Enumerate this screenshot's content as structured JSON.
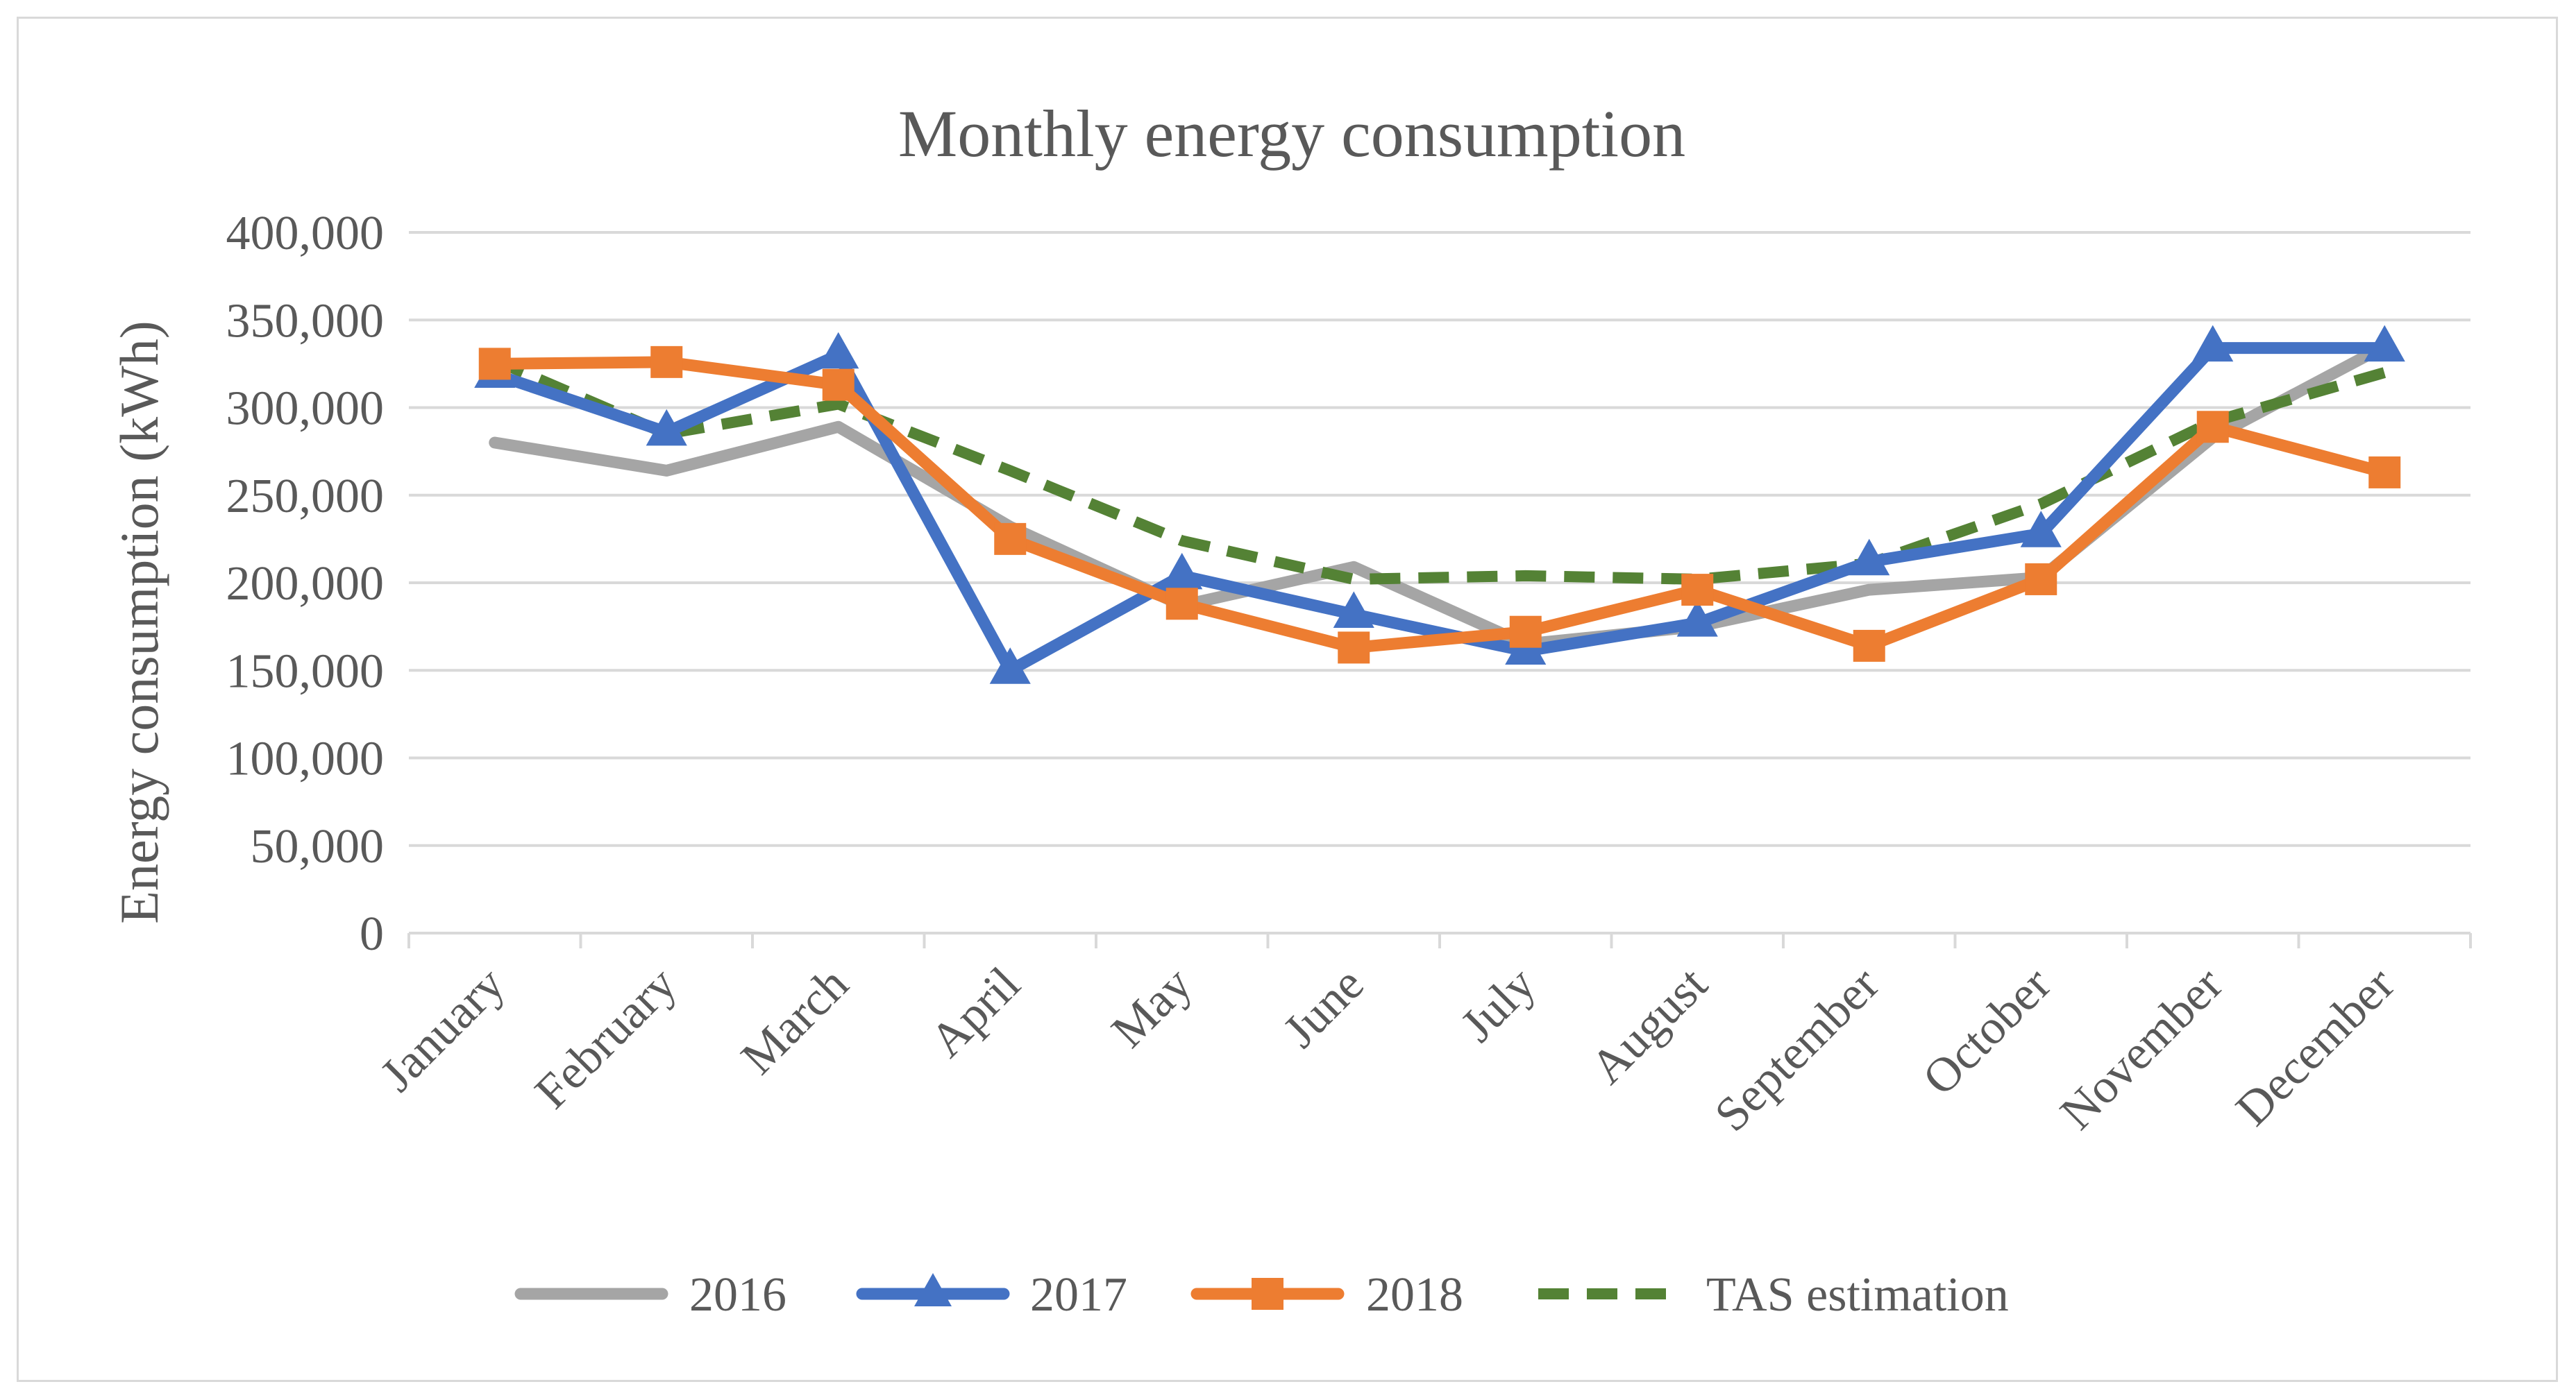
{
  "chart_data": {
    "type": "line",
    "title": "Monthly energy consumption",
    "xlabel": "",
    "ylabel": "Energy consumption (kWh)",
    "ylim": [
      0,
      400000
    ],
    "ytick_step": 50000,
    "ytick_labels": [
      "0",
      "50,000",
      "100,000",
      "150,000",
      "200,000",
      "250,000",
      "300,000",
      "350,000",
      "400,000"
    ],
    "grid": true,
    "legend_position": "bottom",
    "categories": [
      "January",
      "February",
      "March",
      "April",
      "May",
      "June",
      "July",
      "August",
      "September",
      "October",
      "November",
      "December"
    ],
    "series": [
      {
        "name": "2016",
        "color": "#a5a5a5",
        "marker": "none",
        "dash": "solid",
        "values": [
          280000,
          264000,
          289000,
          232000,
          187000,
          209000,
          165000,
          175000,
          196000,
          203000,
          283000,
          335000
        ]
      },
      {
        "name": "2017",
        "color": "#4472c4",
        "marker": "triangle",
        "dash": "solid",
        "values": [
          319000,
          286000,
          330000,
          150000,
          204000,
          182000,
          161000,
          177000,
          212000,
          228000,
          334000,
          334000
        ]
      },
      {
        "name": "2018",
        "color": "#ed7d31",
        "marker": "square",
        "dash": "solid",
        "values": [
          325000,
          326000,
          313000,
          225000,
          188000,
          163000,
          172000,
          196000,
          164000,
          202000,
          289000,
          263000
        ]
      },
      {
        "name": "TAS estimation",
        "color": "#548235",
        "marker": "none",
        "dash": "dashed",
        "values": [
          327000,
          285000,
          302000,
          264000,
          224000,
          202000,
          204000,
          202000,
          211000,
          245000,
          292000,
          320000
        ]
      }
    ]
  }
}
